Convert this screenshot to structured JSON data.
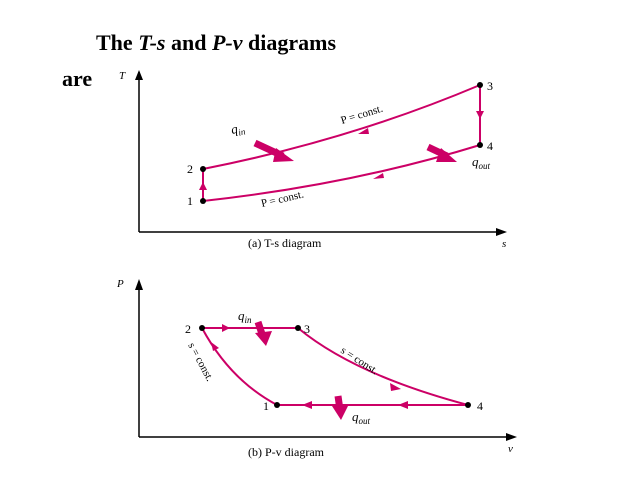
{
  "title": {
    "line1_pre": "The ",
    "ts": "T-s",
    "mid": " and ",
    "pv": "P-v",
    "line1_post": " diagrams",
    "line2": "are"
  },
  "colors": {
    "process": "#cc0066",
    "axes": "#000000",
    "points": "#000000"
  },
  "ts_diagram": {
    "caption": "(a) T-s diagram",
    "x_axis": "s",
    "y_axis": "T",
    "points": [
      "1",
      "2",
      "3",
      "4"
    ],
    "upper_label": "P = const.",
    "lower_label": "P = const.",
    "heat_in": "q",
    "heat_in_sub": "in",
    "heat_out": "q",
    "heat_out_sub": "out"
  },
  "pv_diagram": {
    "caption": "(b) P-v diagram",
    "x_axis": "v",
    "y_axis": "P",
    "points": [
      "1",
      "2",
      "3",
      "4"
    ],
    "left_label": "s = const.",
    "right_label": "s = const.",
    "heat_in": "q",
    "heat_in_sub": "in",
    "heat_out": "q",
    "heat_out_sub": "out"
  }
}
